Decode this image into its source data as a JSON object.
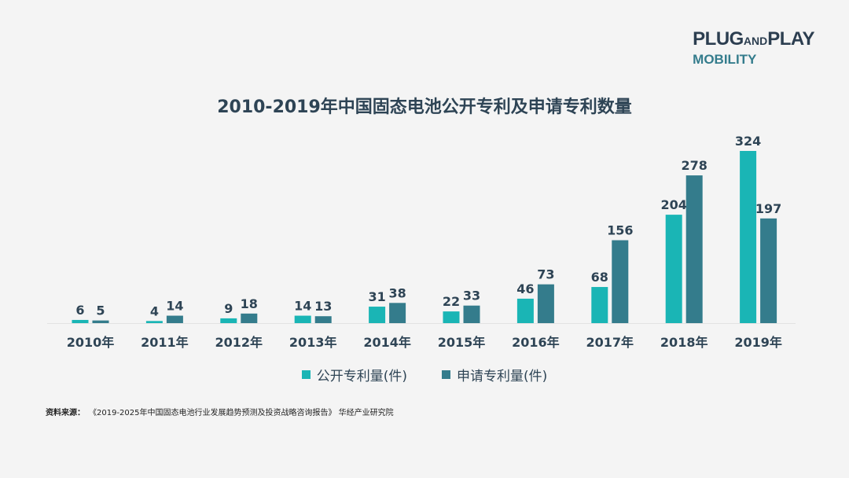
{
  "logo": {
    "line1_a": "PLUG",
    "line1_b": "AND",
    "line1_c": "PLAY",
    "line2": "MOBILITY"
  },
  "colors": {
    "published": "#1ab5b5",
    "applied": "#347c8c",
    "title": "#2e4455"
  },
  "chart_data": {
    "type": "bar",
    "title": "2010-2019年中国固态电池公开专利及申请专利数量",
    "categories": [
      "2010年",
      "2011年",
      "2012年",
      "2013年",
      "2014年",
      "2015年",
      "2016年",
      "2017年",
      "2018年",
      "2019年"
    ],
    "series": [
      {
        "name": "公开专利量(件)",
        "values": [
          6,
          4,
          9,
          14,
          31,
          22,
          46,
          68,
          204,
          324
        ]
      },
      {
        "name": "申请专利量(件)",
        "values": [
          5,
          14,
          18,
          13,
          38,
          33,
          73,
          156,
          278,
          197
        ]
      }
    ],
    "ylim": [
      0,
      324
    ],
    "grid": false,
    "legend": "bottom"
  },
  "source": {
    "label": "资料来源：",
    "text": "《2019-2025年中国固态电池行业发展趋势预测及投资战略咨询报告》 华经产业研究院"
  }
}
